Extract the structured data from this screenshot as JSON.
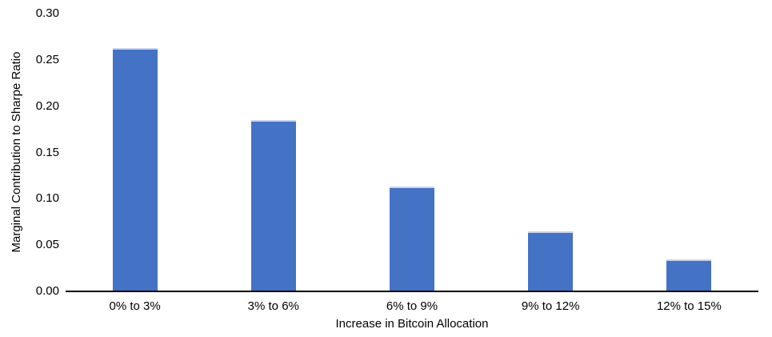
{
  "chart_data": {
    "type": "bar",
    "title": "",
    "categories": [
      "0% to 3%",
      "3% to 6%",
      "6% to 9%",
      "9% to 12%",
      "12% to 15%"
    ],
    "values": [
      0.263,
      0.185,
      0.113,
      0.065,
      0.035
    ],
    "xlabel": "Increase in Bitcoin Allocation",
    "ylabel": "Marginal Contribution to Sharpe Ratio",
    "ylim": [
      0,
      0.3
    ],
    "ytick_step": 0.05,
    "ytick_labels": [
      "0.00",
      "0.05",
      "0.10",
      "0.15",
      "0.20",
      "0.25",
      "0.30"
    ],
    "grid": false,
    "legend_position": "none",
    "colors": {
      "bar_fill": "#4472C4",
      "bar_top_edge": "#C9D3EC",
      "axis_line": "#000000",
      "text": "#000000",
      "background": "#FFFFFF"
    }
  }
}
